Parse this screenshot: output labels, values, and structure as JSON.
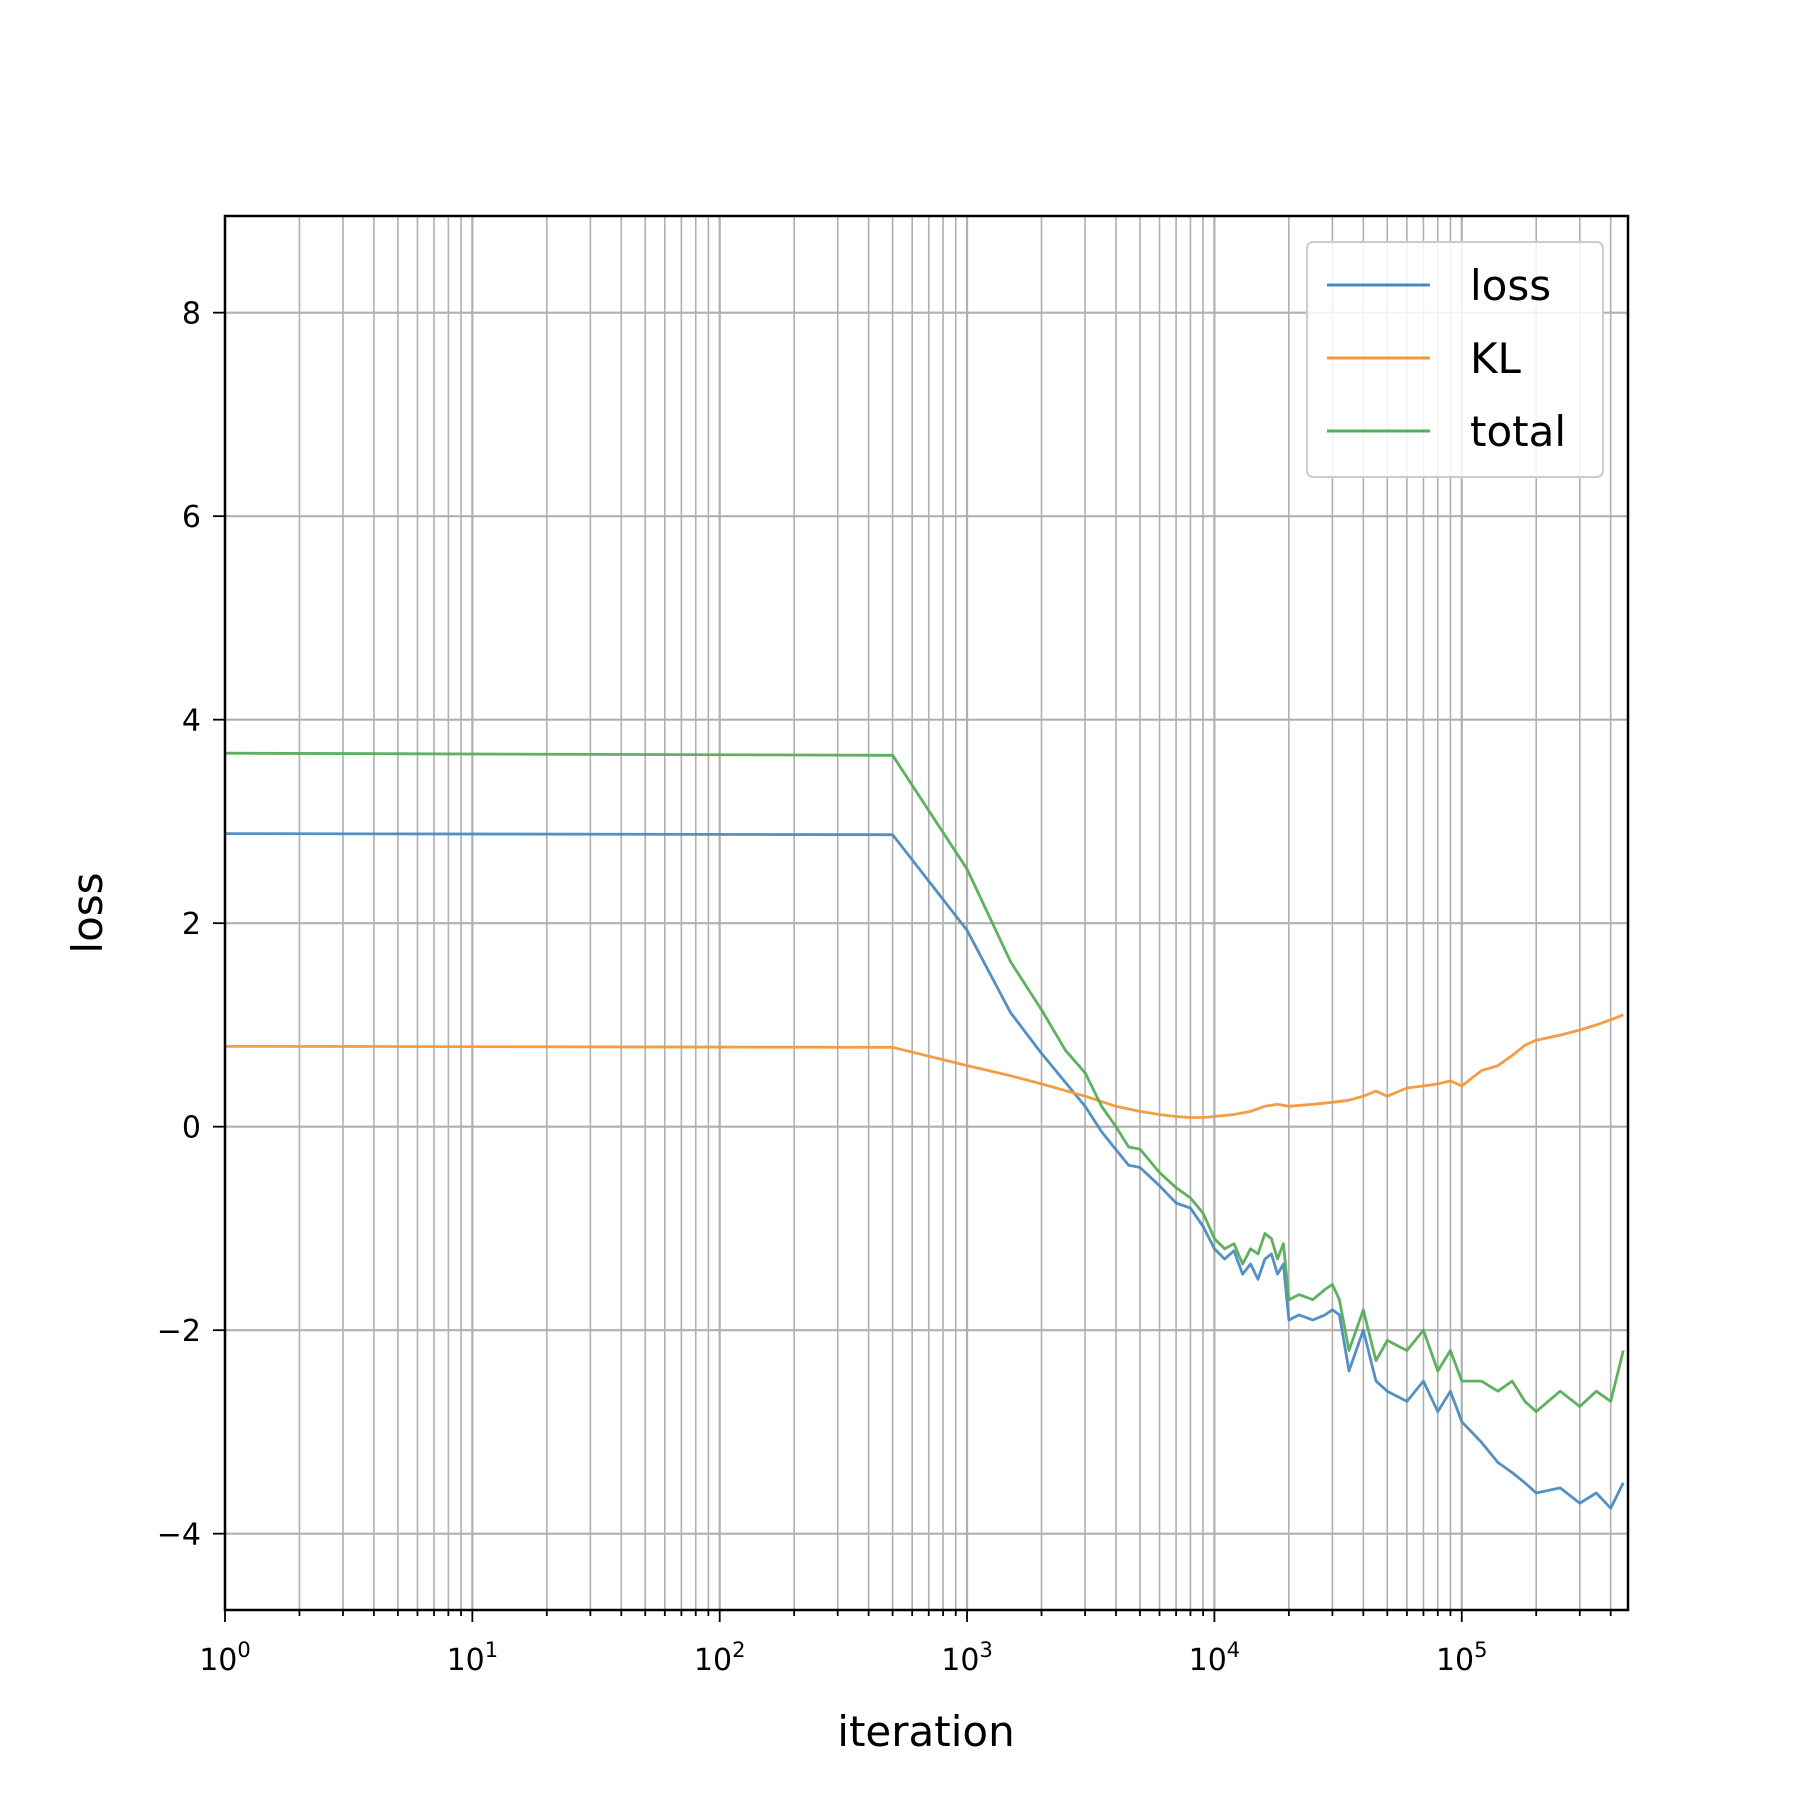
{
  "chart_data": {
    "type": "line",
    "title": "",
    "xlabel": "iteration",
    "ylabel": "loss",
    "xscale": "log",
    "xlim": [
      1,
      470000
    ],
    "ylim": [
      -4.75,
      8.95
    ],
    "xticks": [
      {
        "value": 1,
        "base": "10",
        "exp": "0"
      },
      {
        "value": 10,
        "base": "10",
        "exp": "1"
      },
      {
        "value": 100,
        "base": "10",
        "exp": "2"
      },
      {
        "value": 1000,
        "base": "10",
        "exp": "3"
      },
      {
        "value": 10000,
        "base": "10",
        "exp": "4"
      },
      {
        "value": 100000,
        "base": "10",
        "exp": "5"
      }
    ],
    "yticks": [
      {
        "value": -4,
        "label": "−4"
      },
      {
        "value": -2,
        "label": "−2"
      },
      {
        "value": 0,
        "label": "0"
      },
      {
        "value": 2,
        "label": "2"
      },
      {
        "value": 4,
        "label": "4"
      },
      {
        "value": 6,
        "label": "6"
      },
      {
        "value": 8,
        "label": "8"
      }
    ],
    "grid": true,
    "minor_grid_x": true,
    "legend_position": "top-right",
    "series": [
      {
        "name": "loss",
        "color": "#4a8ac0",
        "points": [
          [
            1,
            2.88
          ],
          [
            500,
            2.87
          ],
          [
            1000,
            1.93
          ],
          [
            1500,
            1.12
          ],
          [
            2000,
            0.72
          ],
          [
            3000,
            0.2
          ],
          [
            3500,
            -0.05
          ],
          [
            4500,
            -0.38
          ],
          [
            5000,
            -0.4
          ],
          [
            6000,
            -0.58
          ],
          [
            7000,
            -0.75
          ],
          [
            8000,
            -0.8
          ],
          [
            9000,
            -0.98
          ],
          [
            10000,
            -1.2
          ],
          [
            11000,
            -1.3
          ],
          [
            12000,
            -1.22
          ],
          [
            13000,
            -1.45
          ],
          [
            14000,
            -1.35
          ],
          [
            15000,
            -1.5
          ],
          [
            16000,
            -1.3
          ],
          [
            17000,
            -1.25
          ],
          [
            18000,
            -1.45
          ],
          [
            19000,
            -1.35
          ],
          [
            20000,
            -1.9
          ],
          [
            22000,
            -1.85
          ],
          [
            25000,
            -1.9
          ],
          [
            28000,
            -1.85
          ],
          [
            30000,
            -1.8
          ],
          [
            32000,
            -1.85
          ],
          [
            35000,
            -2.4
          ],
          [
            40000,
            -2.0
          ],
          [
            45000,
            -2.5
          ],
          [
            50000,
            -2.6
          ],
          [
            60000,
            -2.7
          ],
          [
            70000,
            -2.5
          ],
          [
            80000,
            -2.8
          ],
          [
            90000,
            -2.6
          ],
          [
            100000,
            -2.9
          ],
          [
            120000,
            -3.1
          ],
          [
            140000,
            -3.3
          ],
          [
            160000,
            -3.4
          ],
          [
            180000,
            -3.5
          ],
          [
            200000,
            -3.6
          ],
          [
            250000,
            -3.55
          ],
          [
            300000,
            -3.7
          ],
          [
            350000,
            -3.6
          ],
          [
            400000,
            -3.75
          ],
          [
            450000,
            -3.5
          ]
        ]
      },
      {
        "name": "KL",
        "color": "#f5973a",
        "points": [
          [
            1,
            0.79
          ],
          [
            500,
            0.78
          ],
          [
            1000,
            0.6
          ],
          [
            1500,
            0.5
          ],
          [
            2000,
            0.42
          ],
          [
            3000,
            0.3
          ],
          [
            4000,
            0.2
          ],
          [
            5000,
            0.15
          ],
          [
            6000,
            0.12
          ],
          [
            7000,
            0.1
          ],
          [
            8000,
            0.09
          ],
          [
            9000,
            0.09
          ],
          [
            10000,
            0.1
          ],
          [
            12000,
            0.12
          ],
          [
            14000,
            0.15
          ],
          [
            16000,
            0.2
          ],
          [
            18000,
            0.22
          ],
          [
            20000,
            0.2
          ],
          [
            25000,
            0.22
          ],
          [
            30000,
            0.24
          ],
          [
            35000,
            0.26
          ],
          [
            40000,
            0.3
          ],
          [
            45000,
            0.35
          ],
          [
            50000,
            0.3
          ],
          [
            60000,
            0.38
          ],
          [
            70000,
            0.4
          ],
          [
            80000,
            0.42
          ],
          [
            90000,
            0.45
          ],
          [
            100000,
            0.4
          ],
          [
            120000,
            0.55
          ],
          [
            140000,
            0.6
          ],
          [
            160000,
            0.7
          ],
          [
            180000,
            0.8
          ],
          [
            200000,
            0.85
          ],
          [
            250000,
            0.9
          ],
          [
            300000,
            0.95
          ],
          [
            350000,
            1.0
          ],
          [
            400000,
            1.05
          ],
          [
            450000,
            1.1
          ]
        ]
      },
      {
        "name": "total",
        "color": "#55ad55",
        "points": [
          [
            1,
            3.67
          ],
          [
            500,
            3.65
          ],
          [
            1000,
            2.53
          ],
          [
            1500,
            1.62
          ],
          [
            2000,
            1.15
          ],
          [
            2500,
            0.75
          ],
          [
            3000,
            0.53
          ],
          [
            3500,
            0.2
          ],
          [
            4000,
            0.0
          ],
          [
            4500,
            -0.2
          ],
          [
            5000,
            -0.22
          ],
          [
            6000,
            -0.45
          ],
          [
            7000,
            -0.6
          ],
          [
            8000,
            -0.7
          ],
          [
            9000,
            -0.85
          ],
          [
            10000,
            -1.1
          ],
          [
            11000,
            -1.2
          ],
          [
            12000,
            -1.15
          ],
          [
            13000,
            -1.35
          ],
          [
            14000,
            -1.2
          ],
          [
            15000,
            -1.25
          ],
          [
            16000,
            -1.05
          ],
          [
            17000,
            -1.1
          ],
          [
            18000,
            -1.3
          ],
          [
            19000,
            -1.15
          ],
          [
            20000,
            -1.7
          ],
          [
            22000,
            -1.65
          ],
          [
            25000,
            -1.7
          ],
          [
            28000,
            -1.6
          ],
          [
            30000,
            -1.55
          ],
          [
            32000,
            -1.7
          ],
          [
            35000,
            -2.2
          ],
          [
            40000,
            -1.8
          ],
          [
            45000,
            -2.3
          ],
          [
            50000,
            -2.1
          ],
          [
            60000,
            -2.2
          ],
          [
            70000,
            -2.0
          ],
          [
            80000,
            -2.4
          ],
          [
            90000,
            -2.2
          ],
          [
            100000,
            -2.5
          ],
          [
            120000,
            -2.5
          ],
          [
            140000,
            -2.6
          ],
          [
            160000,
            -2.5
          ],
          [
            180000,
            -2.7
          ],
          [
            200000,
            -2.8
          ],
          [
            250000,
            -2.6
          ],
          [
            300000,
            -2.75
          ],
          [
            350000,
            -2.6
          ],
          [
            400000,
            -2.7
          ],
          [
            450000,
            -2.2
          ]
        ]
      }
    ]
  }
}
